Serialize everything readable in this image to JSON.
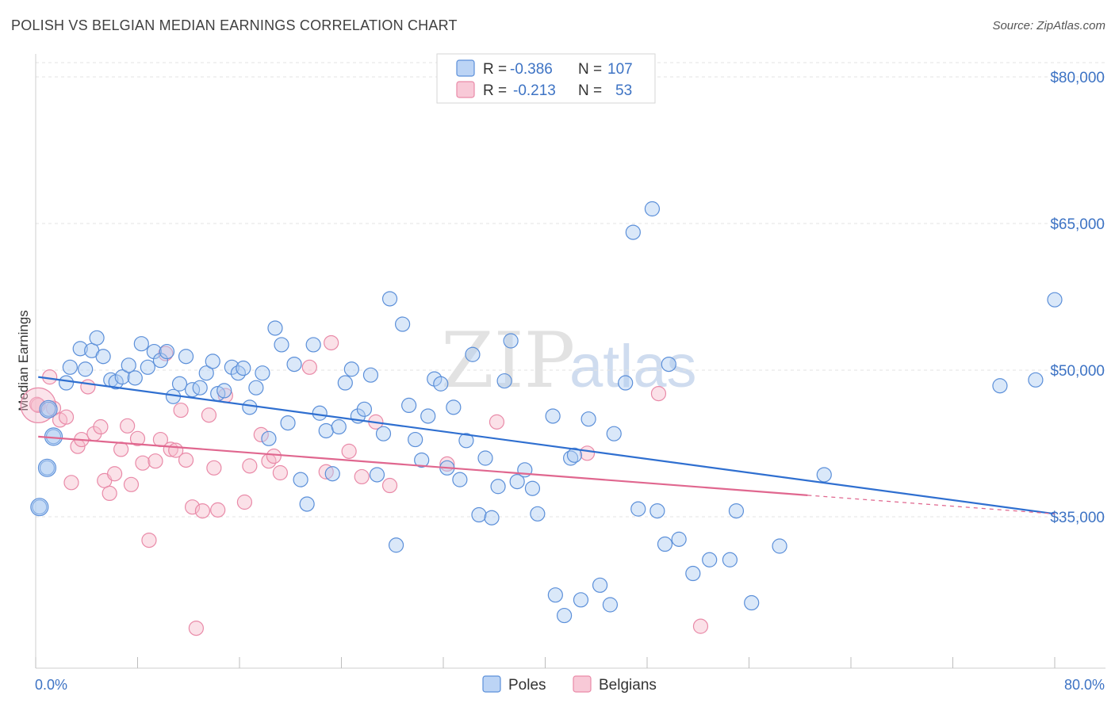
{
  "title": "POLISH VS BELGIAN MEDIAN EARNINGS CORRELATION CHART",
  "source": "Source: ZipAtlas.com",
  "watermark": {
    "part1": "ZIP",
    "part2": "atlas"
  },
  "colors": {
    "poles": "#5b8fd9",
    "belgians": "#e98aa8",
    "poles_line": "#2f6fd0",
    "belgians_line": "#e0678f",
    "axis_text": "#3d73c4"
  },
  "chart_data": {
    "type": "scatter",
    "title": "POLISH VS BELGIAN MEDIAN EARNINGS CORRELATION CHART",
    "xlabel": "",
    "ylabel": "Median Earnings",
    "xlim": [
      0,
      80
    ],
    "ylim": [
      20000,
      83000
    ],
    "x_tick_labels": [
      "0.0%",
      "80.0%"
    ],
    "y_ticks": [
      35000,
      50000,
      65000,
      80000
    ],
    "y_tick_labels": [
      "$35,000",
      "$50,000",
      "$65,000",
      "$80,000"
    ],
    "grid": true,
    "legend": [
      {
        "name": "Poles",
        "R_label": "R =",
        "R": "-0.386",
        "N_label": "N =",
        "N": "107"
      },
      {
        "name": "Belgians",
        "R_label": "R =",
        "R": "-0.213",
        "N_label": "N =",
        "N": "53"
      }
    ],
    "series": [
      {
        "name": "Poles",
        "trend": {
          "x0": 0.2,
          "y0": 49300,
          "x1": 80,
          "y1": 35300
        },
        "points": [
          [
            0.3,
            36000
          ],
          [
            1.0,
            46000
          ],
          [
            1.4,
            43200
          ],
          [
            0.9,
            40000
          ],
          [
            2.4,
            48700
          ],
          [
            2.7,
            50300
          ],
          [
            3.5,
            52200
          ],
          [
            3.9,
            50100
          ],
          [
            4.4,
            52000
          ],
          [
            4.8,
            53300
          ],
          [
            5.3,
            51400
          ],
          [
            5.9,
            49000
          ],
          [
            6.3,
            48800
          ],
          [
            6.8,
            49300
          ],
          [
            7.3,
            50500
          ],
          [
            7.8,
            49200
          ],
          [
            8.3,
            52700
          ],
          [
            8.8,
            50300
          ],
          [
            9.3,
            51900
          ],
          [
            9.8,
            51000
          ],
          [
            10.3,
            51900
          ],
          [
            10.8,
            47300
          ],
          [
            11.3,
            48600
          ],
          [
            11.8,
            51400
          ],
          [
            12.3,
            48000
          ],
          [
            12.9,
            48200
          ],
          [
            13.4,
            49700
          ],
          [
            13.9,
            50900
          ],
          [
            14.3,
            47600
          ],
          [
            14.8,
            47900
          ],
          [
            15.4,
            50300
          ],
          [
            15.9,
            49700
          ],
          [
            16.3,
            50200
          ],
          [
            16.8,
            46200
          ],
          [
            17.3,
            48200
          ],
          [
            17.8,
            49700
          ],
          [
            18.3,
            43000
          ],
          [
            18.8,
            54300
          ],
          [
            19.3,
            52600
          ],
          [
            19.8,
            44600
          ],
          [
            20.3,
            50600
          ],
          [
            20.8,
            38800
          ],
          [
            21.3,
            36300
          ],
          [
            21.8,
            52600
          ],
          [
            22.3,
            45600
          ],
          [
            22.8,
            43800
          ],
          [
            23.3,
            39400
          ],
          [
            23.8,
            44200
          ],
          [
            24.3,
            48700
          ],
          [
            24.8,
            50100
          ],
          [
            25.3,
            45300
          ],
          [
            25.8,
            46000
          ],
          [
            26.3,
            49500
          ],
          [
            26.8,
            39300
          ],
          [
            27.3,
            43500
          ],
          [
            27.8,
            57300
          ],
          [
            28.3,
            32100
          ],
          [
            28.8,
            54700
          ],
          [
            29.3,
            46400
          ],
          [
            29.8,
            42900
          ],
          [
            30.3,
            40800
          ],
          [
            30.8,
            45300
          ],
          [
            31.3,
            49100
          ],
          [
            31.8,
            48600
          ],
          [
            32.3,
            40000
          ],
          [
            32.8,
            46200
          ],
          [
            33.3,
            38800
          ],
          [
            33.8,
            42800
          ],
          [
            34.3,
            51600
          ],
          [
            34.8,
            35200
          ],
          [
            35.3,
            41000
          ],
          [
            35.8,
            34900
          ],
          [
            36.3,
            38100
          ],
          [
            36.8,
            48900
          ],
          [
            37.3,
            53000
          ],
          [
            37.8,
            38600
          ],
          [
            38.4,
            39800
          ],
          [
            39.0,
            37900
          ],
          [
            39.4,
            35300
          ],
          [
            40.6,
            45300
          ],
          [
            40.8,
            27000
          ],
          [
            41.5,
            24900
          ],
          [
            42.0,
            41000
          ],
          [
            42.3,
            41300
          ],
          [
            42.8,
            26500
          ],
          [
            43.4,
            45000
          ],
          [
            44.3,
            28000
          ],
          [
            45.1,
            26000
          ],
          [
            45.4,
            43500
          ],
          [
            46.3,
            48700
          ],
          [
            46.9,
            64100
          ],
          [
            47.3,
            35800
          ],
          [
            48.4,
            66500
          ],
          [
            48.8,
            35600
          ],
          [
            49.4,
            32200
          ],
          [
            49.7,
            50600
          ],
          [
            50.5,
            32700
          ],
          [
            51.6,
            29200
          ],
          [
            52.9,
            30600
          ],
          [
            54.5,
            30600
          ],
          [
            55.0,
            35600
          ],
          [
            56.2,
            26200
          ],
          [
            58.4,
            32000
          ],
          [
            61.9,
            39300
          ],
          [
            75.7,
            48400
          ],
          [
            78.5,
            49000
          ],
          [
            80.0,
            57200
          ]
        ]
      },
      {
        "name": "Belgians",
        "trend": {
          "x0": 0.2,
          "y0": 43200,
          "x1": 60.6,
          "y1": 37200
        },
        "trend_dashed": {
          "x0": 60.6,
          "y0": 37200,
          "x1": 80,
          "y1": 35300
        },
        "points": [
          [
            0.2,
            46400
          ],
          [
            1.1,
            49300
          ],
          [
            1.4,
            46100
          ],
          [
            1.9,
            44900
          ],
          [
            2.4,
            45200
          ],
          [
            2.8,
            38500
          ],
          [
            3.3,
            42200
          ],
          [
            3.6,
            42900
          ],
          [
            4.1,
            48300
          ],
          [
            4.6,
            43500
          ],
          [
            5.1,
            44200
          ],
          [
            5.4,
            38700
          ],
          [
            5.8,
            37400
          ],
          [
            6.2,
            39400
          ],
          [
            6.7,
            41900
          ],
          [
            7.2,
            44300
          ],
          [
            7.5,
            38300
          ],
          [
            8.0,
            43000
          ],
          [
            8.4,
            40500
          ],
          [
            8.9,
            32600
          ],
          [
            9.4,
            40700
          ],
          [
            9.8,
            42900
          ],
          [
            10.2,
            51700
          ],
          [
            10.6,
            41900
          ],
          [
            11.0,
            41800
          ],
          [
            11.4,
            45900
          ],
          [
            11.8,
            40800
          ],
          [
            12.3,
            36000
          ],
          [
            12.6,
            23600
          ],
          [
            13.1,
            35600
          ],
          [
            13.6,
            45400
          ],
          [
            14.0,
            40000
          ],
          [
            14.3,
            35700
          ],
          [
            14.9,
            47400
          ],
          [
            16.4,
            36500
          ],
          [
            16.8,
            40200
          ],
          [
            17.7,
            43400
          ],
          [
            18.3,
            40700
          ],
          [
            18.7,
            41200
          ],
          [
            19.2,
            39500
          ],
          [
            21.5,
            50300
          ],
          [
            22.8,
            39600
          ],
          [
            23.2,
            52800
          ],
          [
            24.6,
            41700
          ],
          [
            25.6,
            39100
          ],
          [
            26.7,
            44700
          ],
          [
            27.8,
            38200
          ],
          [
            32.3,
            40400
          ],
          [
            36.2,
            44700
          ],
          [
            43.3,
            41500
          ],
          [
            48.9,
            47600
          ],
          [
            52.2,
            23800
          ],
          [
            0.1,
            46500
          ]
        ]
      }
    ]
  }
}
